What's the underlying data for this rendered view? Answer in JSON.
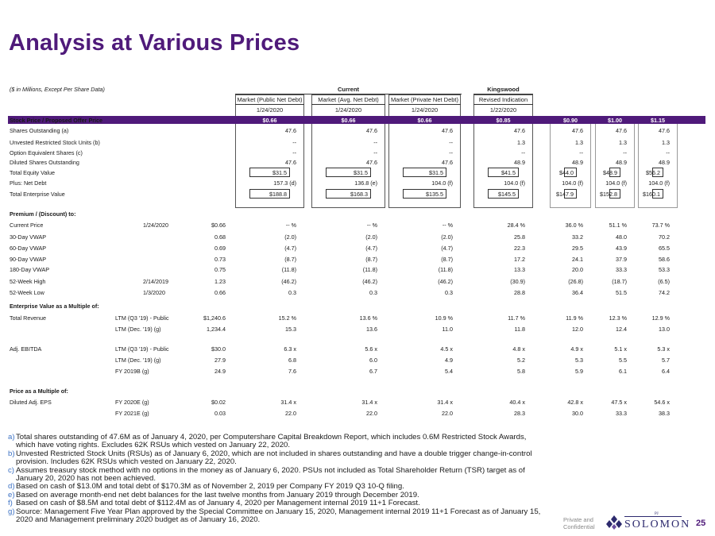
{
  "title": "Analysis at Various Prices",
  "units_note": "($ in Millions, Except Per Share Data)",
  "groups": {
    "current": "Current",
    "kingswood": "Kingswood"
  },
  "columns": [
    {
      "label": "Market (Public Net Debt)",
      "date": "1/24/2020",
      "price": "$0.66"
    },
    {
      "label": "Market (Avg. Net Debt)",
      "date": "1/24/2020",
      "price": "$0.66"
    },
    {
      "label": "Market (Private Net Debt)",
      "date": "1/24/2020",
      "price": "$0.66"
    },
    {
      "label": "Revised Indication",
      "date": "1/22/2020",
      "price": "$0.85"
    },
    {
      "label": "",
      "date": "",
      "price": "$0.90"
    },
    {
      "label": "",
      "date": "",
      "price": "$1.00"
    },
    {
      "label": "",
      "date": "",
      "price": "$1.15"
    }
  ],
  "price_row_label": "Stock Price / Proposed Offer Price",
  "rows": [
    {
      "label": "Shares Outstanding (a)",
      "values": [
        "47.6",
        "47.6",
        "47.6",
        "47.6",
        "47.6",
        "47.6",
        "47.6"
      ]
    },
    {
      "label": "Unvested Restricted Stock Units (b)",
      "values": [
        "--",
        "--",
        "--",
        "1.3",
        "1.3",
        "1.3",
        "1.3"
      ]
    },
    {
      "label": "Option Equivalent Shares (c)",
      "values": [
        "--",
        "--",
        "--",
        "--",
        "--",
        "--",
        "--"
      ]
    },
    {
      "label": "Diluted Shares Outstanding",
      "values": [
        "47.6",
        "47.6",
        "47.6",
        "48.9",
        "48.9",
        "48.9",
        "48.9"
      ]
    },
    {
      "label": "Total Equity Value",
      "values": [
        "$31.5",
        "$31.5",
        "$31.5",
        "$41.5",
        "$44.0",
        "$48.9",
        "$56.2"
      ],
      "boxed": true
    },
    {
      "label": "Plus: Net Debt",
      "values": [
        "157.3  (d)",
        "136.8  (e)",
        "104.0  (f)",
        "104.0  (f)",
        "104.0  (f)",
        "104.0  (f)",
        "104.0  (f)"
      ]
    },
    {
      "label": "Total Enterprise Value",
      "values": [
        "$188.8",
        "$168.3",
        "$135.5",
        "$145.5",
        "$147.9",
        "$152.8",
        "$160.1"
      ],
      "boxed": true
    }
  ],
  "premium": {
    "header": "Premium / (Discount) to:",
    "rows": [
      {
        "label": "Current Price",
        "date": "1/24/2020",
        "ref": "$0.66",
        "values": [
          "--  %",
          "--  %",
          "--  %",
          "28.4  %",
          "36.0  %",
          "51.1  %",
          "73.7  %"
        ]
      },
      {
        "label": "30-Day VWAP",
        "date": "",
        "ref": "0.68",
        "values": [
          "(2.0)",
          "(2.0)",
          "(2.0)",
          "25.8",
          "33.2",
          "48.0",
          "70.2"
        ]
      },
      {
        "label": "60-Day VWAP",
        "date": "",
        "ref": "0.69",
        "values": [
          "(4.7)",
          "(4.7)",
          "(4.7)",
          "22.3",
          "29.5",
          "43.9",
          "65.5"
        ]
      },
      {
        "label": "90-Day VWAP",
        "date": "",
        "ref": "0.73",
        "values": [
          "(8.7)",
          "(8.7)",
          "(8.7)",
          "17.2",
          "24.1",
          "37.9",
          "58.6"
        ]
      },
      {
        "label": "180-Day VWAP",
        "date": "",
        "ref": "0.75",
        "values": [
          "(11.8)",
          "(11.8)",
          "(11.8)",
          "13.3",
          "20.0",
          "33.3",
          "53.3"
        ]
      },
      {
        "label": "52-Week High",
        "date": "2/14/2019",
        "ref": "1.23",
        "values": [
          "(46.2)",
          "(46.2)",
          "(46.2)",
          "(30.9)",
          "(26.8)",
          "(18.7)",
          "(6.5)"
        ]
      },
      {
        "label": "52-Week Low",
        "date": "1/3/2020",
        "ref": "0.66",
        "values": [
          "0.3",
          "0.3",
          "0.3",
          "28.8",
          "36.4",
          "51.5",
          "74.2"
        ]
      }
    ]
  },
  "ev_multiple": {
    "header": "Enterprise Value as a Multiple of:",
    "rows": [
      {
        "label": "Total Revenue",
        "sub": "LTM (Q3 '19) - Public",
        "ref": "$1,240.6",
        "values": [
          "15.2  %",
          "13.6  %",
          "10.9  %",
          "11.7  %",
          "11.9  %",
          "12.3  %",
          "12.9  %"
        ]
      },
      {
        "label": "",
        "sub": "LTM (Dec. '19) (g)",
        "ref": "1,234.4",
        "values": [
          "15.3",
          "13.6",
          "11.0",
          "11.8",
          "12.0",
          "12.4",
          "13.0"
        ]
      },
      {
        "label": "Adj. EBITDA",
        "sub": "LTM (Q3 '19) - Public",
        "ref": "$30.0",
        "values": [
          "6.3  x",
          "5.6  x",
          "4.5  x",
          "4.8  x",
          "4.9  x",
          "5.1  x",
          "5.3  x"
        ]
      },
      {
        "label": "",
        "sub": "LTM (Dec. '19) (g)",
        "ref": "27.9",
        "values": [
          "6.8",
          "6.0",
          "4.9",
          "5.2",
          "5.3",
          "5.5",
          "5.7"
        ]
      },
      {
        "label": "",
        "sub": "FY 2019B (g)",
        "ref": "24.9",
        "values": [
          "7.6",
          "6.7",
          "5.4",
          "5.8",
          "5.9",
          "6.1",
          "6.4"
        ]
      }
    ]
  },
  "price_multiple": {
    "header": "Price as a Multiple of:",
    "rows": [
      {
        "label": "Diluted Adj. EPS",
        "sub": "FY 2020E (g)",
        "ref": "$0.02",
        "values": [
          "31.4  x",
          "31.4  x",
          "31.4  x",
          "40.4  x",
          "42.8  x",
          "47.5  x",
          "54.6  x"
        ]
      },
      {
        "label": "",
        "sub": "FY 2021E (g)",
        "ref": "0.03",
        "values": [
          "22.0",
          "22.0",
          "22.0",
          "28.3",
          "30.0",
          "33.3",
          "38.3"
        ]
      }
    ]
  },
  "footnotes": [
    {
      "key": "a)",
      "text": "Total shares outstanding of 47.6M as of January 4, 2020, per Computershare Capital Breakdown Report, which includes 0.6M Restricted Stock Awards, which have voting rights. Excludes 62K RSUs which vested on January 22, 2020."
    },
    {
      "key": "b)",
      "text": "Unvested Restricted Stock Units (RSUs) as of January 6, 2020, which are not included in shares outstanding and have a double trigger change-in-control provision. Includes 62K RSUs which vested on January 22, 2020."
    },
    {
      "key": "c)",
      "text": "Assumes treasury stock method with no options in the money as of January 6, 2020. PSUs not included as Total Shareholder Return (TSR) target as of January 20, 2020 has not been achieved."
    },
    {
      "key": "d)",
      "text": "Based on cash of $13.0M and total debt of $170.3M as of November 2, 2019 per Company FY 2019 Q3 10-Q filing."
    },
    {
      "key": "e)",
      "text": "Based on average month-end net debt balances for the last twelve months from January 2019 through December 2019."
    },
    {
      "key": "f)",
      "text": "Based on cash of $8.5M and total debt of $112.4M as of January 4, 2020 per Management internal 2019 11+1 Forecast."
    },
    {
      "key": "g)",
      "text": "Source: Management Five Year Plan approved by the Special Committee on January 15, 2020, Management internal 2019 11+1 Forecast as of January 15, 2020 and Management preliminary 2020 budget as of January 16, 2020."
    }
  ],
  "footer": {
    "line1": "Private and",
    "line2": "Confidential",
    "brand": "SOLOMON",
    "brand_small": "PJ",
    "page": "25"
  },
  "colors": {
    "accent": "#4f1a7a",
    "note_key": "#3d72c4"
  }
}
